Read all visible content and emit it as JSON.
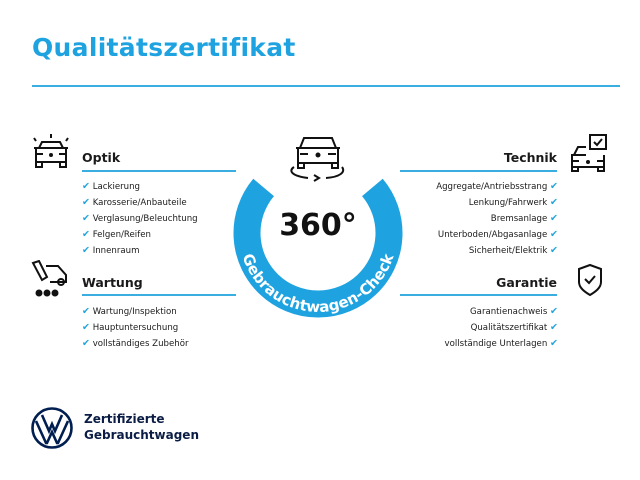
{
  "header": {
    "title": "Qualitätszertifikat"
  },
  "colors": {
    "accent": "#1fa3e0",
    "brand": "#001e50"
  },
  "center": {
    "value": "360°",
    "label": "Gebrauchtwagen-Check",
    "icon": "car-rotate-icon"
  },
  "sections": {
    "optik": {
      "title": "Optik",
      "icon": "car-lights-icon",
      "items": [
        "Lackierung",
        "Karosserie/Anbauteile",
        "Verglasung/Beleuchtung",
        "Felgen/Reifen",
        "Innenraum"
      ]
    },
    "wartung": {
      "title": "Wartung",
      "icon": "maintenance-icon",
      "items": [
        "Wartung/Inspektion",
        "Hauptuntersuchung",
        "vollständiges Zubehör"
      ]
    },
    "technik": {
      "title": "Technik",
      "icon": "car-check-icon",
      "items": [
        "Aggregate/Antriebsstrang",
        "Lenkung/Fahrwerk",
        "Bremsanlage",
        "Unterboden/Abgasanlage",
        "Sicherheit/Elektrik"
      ]
    },
    "garantie": {
      "title": "Garantie",
      "icon": "shield-check-icon",
      "items": [
        "Garantienachweis",
        "Qualitätszertifikat",
        "vollständige Unterlagen"
      ]
    }
  },
  "footer": {
    "line1": "Zertifizierte",
    "line2": "Gebrauchtwagen",
    "logo": "vw-logo"
  }
}
